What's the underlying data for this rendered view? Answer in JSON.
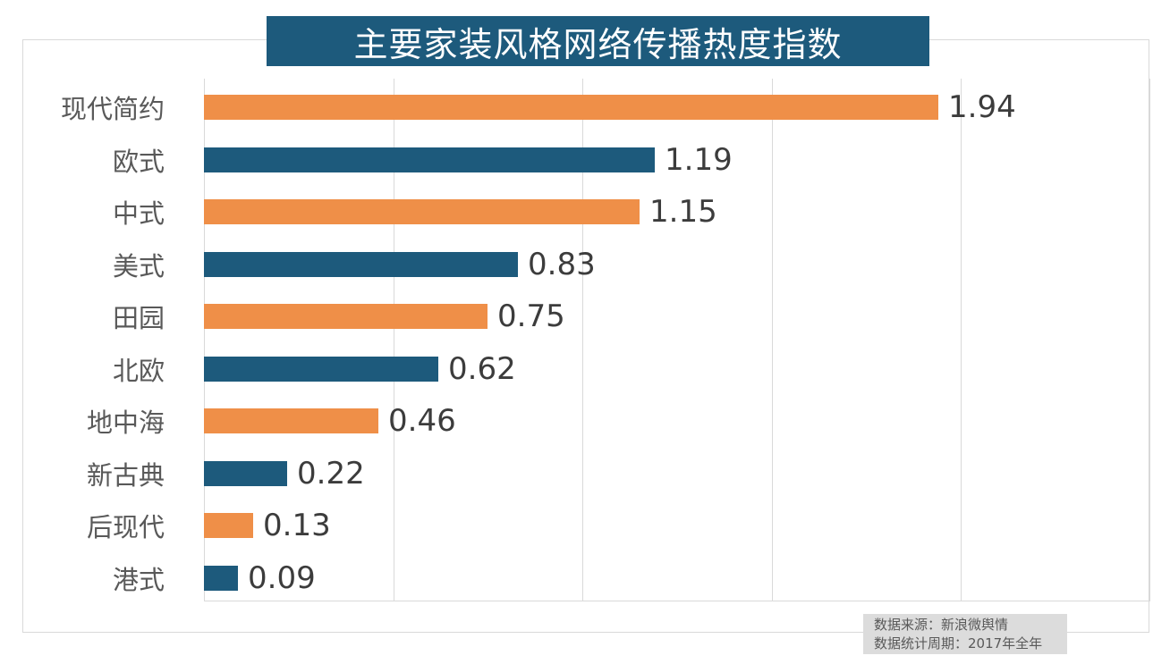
{
  "title": "主要家装风格网络传播热度指数",
  "source_note": {
    "line1": "数据来源：新浪微舆情",
    "line2": "数据统计周期：2017年全年"
  },
  "colors": {
    "title_bg": "#1d5a7c",
    "bar_orange": "#ef8f48",
    "bar_blue": "#1d5a7c",
    "grid": "#d9d9d9",
    "category_label": "#595959",
    "value_label": "#3c3c3c",
    "note_bg": "#dcdcdc",
    "title_text": "#ffffff"
  },
  "chart_data": {
    "type": "bar",
    "orientation": "horizontal",
    "title": "主要家装风格网络传播热度指数",
    "categories": [
      "现代简约",
      "欧式",
      "中式",
      "美式",
      "田园",
      "北欧",
      "地中海",
      "新古典",
      "后现代",
      "港式"
    ],
    "values": [
      1.94,
      1.19,
      1.15,
      0.83,
      0.75,
      0.62,
      0.46,
      0.22,
      0.13,
      0.09
    ],
    "value_labels": [
      "1.94",
      "1.19",
      "1.15",
      "0.83",
      "0.75",
      "0.62",
      "0.46",
      "0.22",
      "0.13",
      "0.09"
    ],
    "bar_colors_alternate": [
      "#ef8f48",
      "#1d5a7c"
    ],
    "xlim": [
      0,
      2.5
    ],
    "grid_step": 0.5,
    "grid": true,
    "legend": false,
    "xlabel": "",
    "ylabel": ""
  }
}
